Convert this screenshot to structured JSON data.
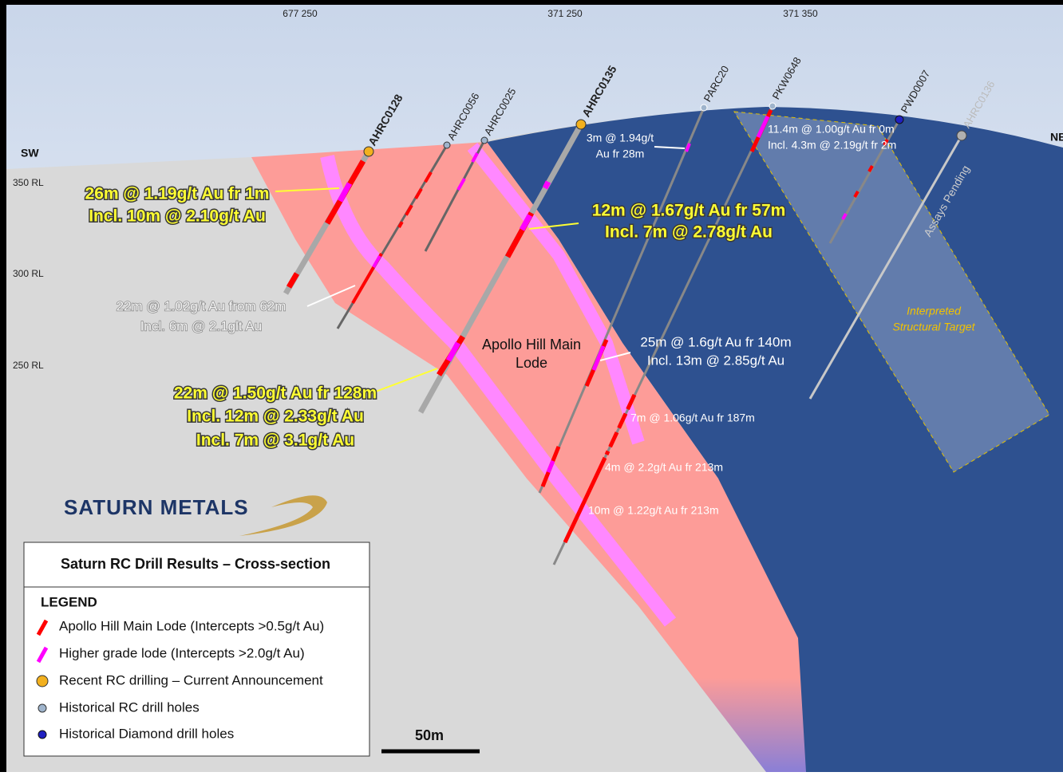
{
  "coordinates": [
    "677 250",
    "371 250",
    "371 350"
  ],
  "directions": {
    "sw": "SW",
    "ne": "NE"
  },
  "rl_labels": [
    "350 RL",
    "300 RL",
    "250 RL"
  ],
  "holes": [
    "AHRC0128",
    "AHRC0056",
    "AHRC0025",
    "AHRC0135",
    "PARC20",
    "PKW0648",
    "PWD0007",
    "AHRC0136"
  ],
  "intercepts": [
    {
      "lines": [
        "26m @ 1.19g/t Au fr 1m",
        "Incl. 10m @ 2.10g/t Au"
      ]
    },
    {
      "lines": [
        "22m @ 1.02g/t Au from 62m",
        "Incl. 6m @ 2.1glt Au"
      ]
    },
    {
      "lines": [
        "22m @ 1.50g/t Au fr 128m",
        "Incl. 12m @ 2.33g/t Au",
        "Incl. 7m @ 3.1g/t Au"
      ]
    },
    {
      "lines": [
        "12m @ 1.67g/t Au fr 57m",
        "Incl. 7m @ 2.78g/t Au"
      ]
    },
    {
      "lines": [
        "3m @ 1.94g/t",
        "Au fr 28m"
      ]
    },
    {
      "lines": [
        "11.4m @ 1.00g/t Au fr 0m",
        "Incl. 4.3m @ 2.19g/t fr 2m"
      ]
    },
    {
      "lines": [
        "25m @ 1.6g/t Au fr 140m",
        "Incl. 13m @ 2.85g/t Au"
      ]
    },
    {
      "lines": [
        "7m @ 1.06g/t Au fr 187m"
      ]
    },
    {
      "lines": [
        "4m @ 2.2g/t Au fr 213m"
      ]
    },
    {
      "lines": [
        "10m @ 1.22g/t Au fr 213m"
      ]
    }
  ],
  "lode_label": [
    "Apollo Hill Main",
    "Lode"
  ],
  "target_label": [
    "Interpreted",
    "Structural Target"
  ],
  "assays_pending": "Assays Pending",
  "logo": "SATURN METALS",
  "legend": {
    "title": "Saturn RC Drill Results – Cross-section",
    "heading": "LEGEND",
    "items": [
      "Apollo Hill Main Lode (Intercepts >0.5g/t Au)",
      "Higher grade lode (Intercepts >2.0g/t Au)",
      "Recent RC drilling – Current Announcement",
      "Historical RC drill holes",
      "Historical Diamond drill holes"
    ]
  },
  "scale": "50m"
}
